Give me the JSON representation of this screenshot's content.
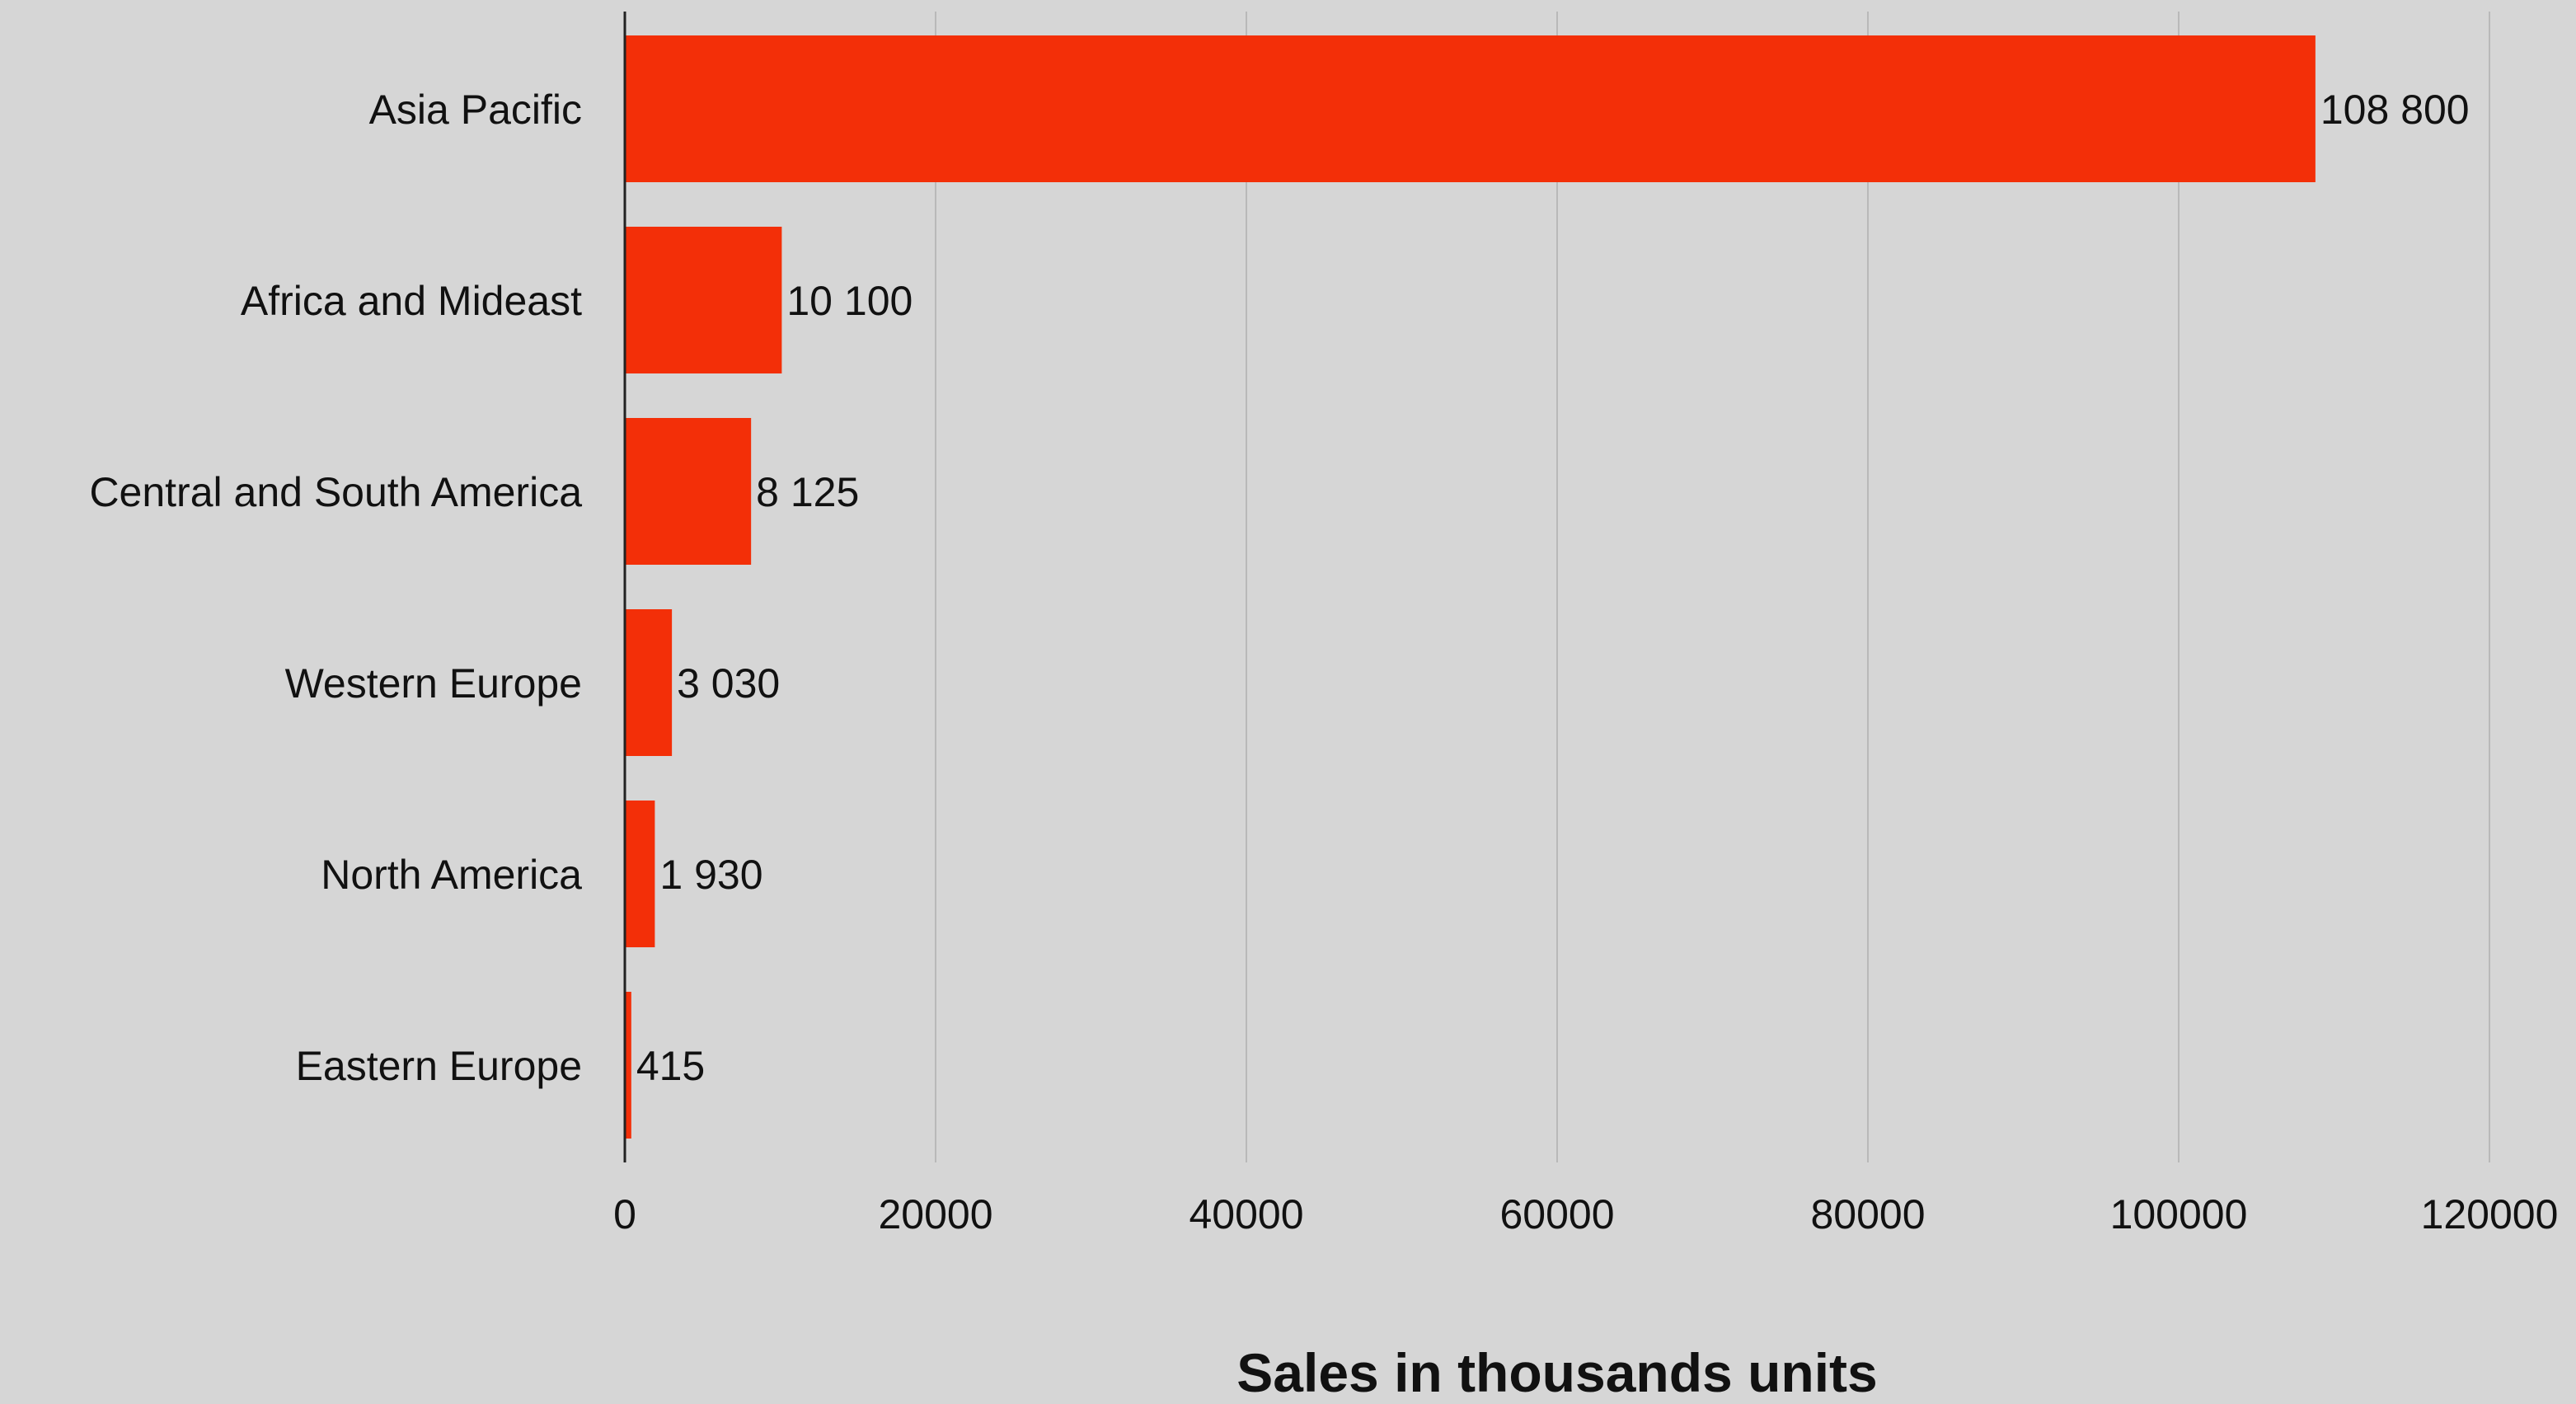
{
  "chart_data": {
    "type": "bar",
    "orientation": "horizontal",
    "title": "",
    "xlabel": "Sales in thousands units",
    "ylabel": "",
    "categories": [
      "Asia Pacific",
      "Africa and Mideast",
      "Central and South America",
      "Western Europe",
      "North America",
      "Eastern Europe"
    ],
    "values": [
      108800,
      10100,
      8125,
      3030,
      1930,
      415
    ],
    "value_labels": [
      "108 800",
      "10 100",
      "8 125",
      "3 030",
      "1 930",
      "415"
    ],
    "xlim": [
      0,
      120000
    ],
    "x_ticks": [
      0,
      20000,
      40000,
      60000,
      80000,
      100000,
      120000
    ],
    "x_tick_labels": [
      "0",
      "20000",
      "40000",
      "60000",
      "80000",
      "100000",
      "120000"
    ],
    "grid": "vertical",
    "legend": "none"
  },
  "colors": {
    "background": "#d6d6d6",
    "bar": "#f32f08",
    "grid": "#b9b9b9",
    "axis": "#222222",
    "text": "#111111"
  }
}
